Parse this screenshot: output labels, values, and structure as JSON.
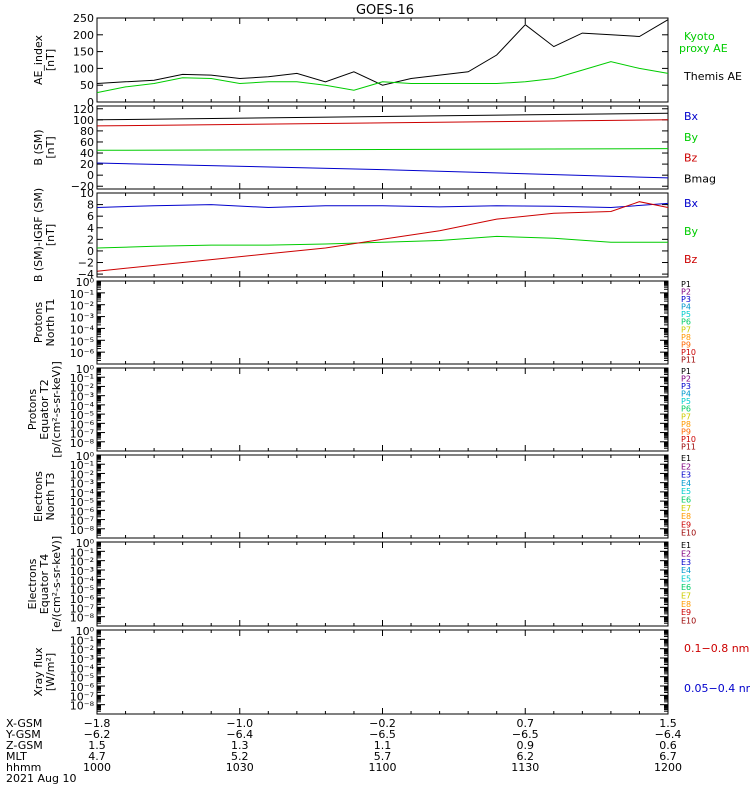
{
  "title": "GOES-16",
  "panels": [
    {
      "id": "ae",
      "ylabel_lines": [
        "AE_index",
        "[nT]"
      ],
      "ylim": [
        0,
        250
      ],
      "yticks": [
        {
          "v": 250,
          "label": "250"
        },
        {
          "v": 200,
          "label": "200"
        },
        {
          "v": 150,
          "label": "150"
        },
        {
          "v": 100,
          "label": "100"
        },
        {
          "v": 50,
          "label": "50"
        },
        {
          "v": 0,
          "label": "0"
        }
      ],
      "legend": [
        {
          "text": "Kyoto",
          "color": "#00cc00"
        },
        {
          "text": "proxy AE",
          "color": "#00cc00"
        },
        {
          "text": "Themis AE",
          "color": "#000000"
        }
      ],
      "series": [
        {
          "color": "#000000",
          "x": [
            0,
            0.05,
            0.1,
            0.15,
            0.2,
            0.25,
            0.3,
            0.35,
            0.4,
            0.45,
            0.5,
            0.55,
            0.6,
            0.65,
            0.7,
            0.75,
            0.8,
            0.85,
            0.9,
            0.95,
            1
          ],
          "y": [
            55,
            60,
            65,
            82,
            80,
            70,
            75,
            85,
            60,
            90,
            50,
            70,
            80,
            90,
            140,
            230,
            165,
            205,
            200,
            195,
            245
          ]
        },
        {
          "color": "#00cc00",
          "x": [
            0,
            0.05,
            0.1,
            0.15,
            0.2,
            0.25,
            0.3,
            0.35,
            0.4,
            0.45,
            0.5,
            0.55,
            0.6,
            0.65,
            0.7,
            0.75,
            0.8,
            0.85,
            0.9,
            0.95,
            1
          ],
          "y": [
            28,
            45,
            55,
            72,
            70,
            55,
            60,
            60,
            50,
            35,
            60,
            55,
            55,
            55,
            55,
            60,
            70,
            95,
            120,
            100,
            85
          ]
        }
      ]
    },
    {
      "id": "b_sm",
      "ylabel_lines": [
        "B (SM)",
        "[nT]"
      ],
      "ylim": [
        -25,
        125
      ],
      "yticks": [
        {
          "v": 120,
          "label": "120"
        },
        {
          "v": 100,
          "label": "100"
        },
        {
          "v": 80,
          "label": "80"
        },
        {
          "v": 60,
          "label": "60"
        },
        {
          "v": 40,
          "label": "40"
        },
        {
          "v": 20,
          "label": "20"
        },
        {
          "v": 0,
          "label": "0"
        },
        {
          "v": -20,
          "label": "−20"
        }
      ],
      "legend": [
        {
          "text": "Bx",
          "color": "#0000cc"
        },
        {
          "text": "By",
          "color": "#00cc00"
        },
        {
          "text": "Bz",
          "color": "#cc0000"
        },
        {
          "text": "Bmag",
          "color": "#000000"
        }
      ],
      "series": [
        {
          "color": "#000000",
          "x": [
            0,
            1
          ],
          "y": [
            100,
            112
          ]
        },
        {
          "color": "#cc0000",
          "x": [
            0,
            1
          ],
          "y": [
            89,
            100
          ]
        },
        {
          "color": "#00cc00",
          "x": [
            0,
            1
          ],
          "y": [
            45,
            48
          ]
        },
        {
          "color": "#0000cc",
          "x": [
            0,
            0.5,
            1
          ],
          "y": [
            22,
            10,
            -5
          ]
        }
      ]
    },
    {
      "id": "b_igrf",
      "ylabel_lines": [
        "B (SM)-IGRF (SM)",
        "[nT]"
      ],
      "ylim": [
        -4.5,
        10
      ],
      "yticks": [
        {
          "v": 10,
          "label": "10"
        },
        {
          "v": 8,
          "label": "8"
        },
        {
          "v": 6,
          "label": "6"
        },
        {
          "v": 4,
          "label": "4"
        },
        {
          "v": 2,
          "label": "2"
        },
        {
          "v": 0,
          "label": "0"
        },
        {
          "v": -2,
          "label": "−2"
        },
        {
          "v": -4,
          "label": "−4"
        }
      ],
      "legend": [
        {
          "text": "Bx",
          "color": "#0000cc"
        },
        {
          "text": "By",
          "color": "#00cc00"
        },
        {
          "text": "Bz",
          "color": "#cc0000"
        }
      ],
      "series": [
        {
          "color": "#0000cc",
          "x": [
            0,
            0.1,
            0.2,
            0.3,
            0.4,
            0.5,
            0.6,
            0.7,
            0.8,
            0.9,
            1
          ],
          "y": [
            7.5,
            7.8,
            8,
            7.5,
            7.8,
            7.8,
            7.6,
            7.8,
            7.7,
            7.5,
            8.2
          ]
        },
        {
          "color": "#00cc00",
          "x": [
            0,
            0.1,
            0.2,
            0.3,
            0.4,
            0.5,
            0.6,
            0.7,
            0.8,
            0.9,
            1
          ],
          "y": [
            0.5,
            0.8,
            1,
            1,
            1.2,
            1.5,
            1.8,
            2.5,
            2.2,
            1.5,
            1.5
          ]
        },
        {
          "color": "#cc0000",
          "x": [
            0,
            0.1,
            0.2,
            0.3,
            0.4,
            0.5,
            0.6,
            0.7,
            0.8,
            0.9,
            0.95,
            1
          ],
          "y": [
            -3.5,
            -2.5,
            -1.5,
            -0.5,
            0.5,
            2,
            3.5,
            5.5,
            6.5,
            6.8,
            8.5,
            7.5
          ]
        }
      ]
    },
    {
      "id": "protons_t1",
      "ylabel_lines": [
        "Protons",
        "North T1"
      ],
      "log_ticks": [
        {
          "label": "10⁰"
        },
        {
          "label": "10⁻¹"
        },
        {
          "label": "10⁻²"
        },
        {
          "label": "10⁻³"
        },
        {
          "label": "10⁻⁴"
        },
        {
          "label": "10⁻⁵"
        },
        {
          "label": "10⁻⁶"
        }
      ],
      "legend": [
        {
          "text": "P1",
          "color": "#000000"
        },
        {
          "text": "P2",
          "color": "#800080"
        },
        {
          "text": "P3",
          "color": "#0000cc"
        },
        {
          "text": "P4",
          "color": "#0099cc"
        },
        {
          "text": "P5",
          "color": "#00cccc"
        },
        {
          "text": "P6",
          "color": "#00cc66"
        },
        {
          "text": "P7",
          "color": "#cccc00"
        },
        {
          "text": "P8",
          "color": "#ff9900"
        },
        {
          "text": "P9",
          "color": "#ff6600"
        },
        {
          "text": "P10",
          "color": "#cc0000"
        },
        {
          "text": "P11",
          "color": "#990000"
        }
      ]
    },
    {
      "id": "protons_t2",
      "ylabel_lines": [
        "Protons",
        "Equator T2",
        "[p/(cm²-s-sr-keV)]"
      ],
      "log_ticks": [
        {
          "label": "10⁰"
        },
        {
          "label": "10⁻¹"
        },
        {
          "label": "10⁻²"
        },
        {
          "label": "10⁻³"
        },
        {
          "label": "10⁻⁴"
        },
        {
          "label": "10⁻⁵"
        },
        {
          "label": "10⁻⁶"
        },
        {
          "label": "10⁻⁷"
        },
        {
          "label": "10⁻⁸"
        }
      ],
      "legend": [
        {
          "text": "P1",
          "color": "#000000"
        },
        {
          "text": "P2",
          "color": "#800080"
        },
        {
          "text": "P3",
          "color": "#0000cc"
        },
        {
          "text": "P4",
          "color": "#0099cc"
        },
        {
          "text": "P5",
          "color": "#00cccc"
        },
        {
          "text": "P6",
          "color": "#00cc66"
        },
        {
          "text": "P7",
          "color": "#cccc00"
        },
        {
          "text": "P8",
          "color": "#ff9900"
        },
        {
          "text": "P9",
          "color": "#ff6600"
        },
        {
          "text": "P10",
          "color": "#cc0000"
        },
        {
          "text": "P11",
          "color": "#990000"
        }
      ]
    },
    {
      "id": "electrons_t3",
      "ylabel_lines": [
        "Electrons",
        "North T3"
      ],
      "log_ticks": [
        {
          "label": "10⁰"
        },
        {
          "label": "10⁻¹"
        },
        {
          "label": "10⁻²"
        },
        {
          "label": "10⁻³"
        },
        {
          "label": "10⁻⁴"
        },
        {
          "label": "10⁻⁵"
        },
        {
          "label": "10⁻⁶"
        },
        {
          "label": "10⁻⁷"
        },
        {
          "label": "10⁻⁸"
        }
      ],
      "legend": [
        {
          "text": "E1",
          "color": "#000000"
        },
        {
          "text": "E2",
          "color": "#800080"
        },
        {
          "text": "E3",
          "color": "#0000cc"
        },
        {
          "text": "E4",
          "color": "#0099cc"
        },
        {
          "text": "E5",
          "color": "#00cccc"
        },
        {
          "text": "E6",
          "color": "#00cc66"
        },
        {
          "text": "E7",
          "color": "#cccc00"
        },
        {
          "text": "E8",
          "color": "#ff9900"
        },
        {
          "text": "E9",
          "color": "#cc0000"
        },
        {
          "text": "E10",
          "color": "#990000"
        }
      ]
    },
    {
      "id": "electrons_t4",
      "ylabel_lines": [
        "Electrons",
        "Equator T4",
        "[e/(cm²-s-sr-keV)]"
      ],
      "log_ticks": [
        {
          "label": "10⁰"
        },
        {
          "label": "10⁻¹"
        },
        {
          "label": "10⁻²"
        },
        {
          "label": "10⁻³"
        },
        {
          "label": "10⁻⁴"
        },
        {
          "label": "10⁻⁵"
        },
        {
          "label": "10⁻⁶"
        },
        {
          "label": "10⁻⁷"
        },
        {
          "label": "10⁻⁸"
        }
      ],
      "legend": [
        {
          "text": "E1",
          "color": "#000000"
        },
        {
          "text": "E2",
          "color": "#800080"
        },
        {
          "text": "E3",
          "color": "#0000cc"
        },
        {
          "text": "E4",
          "color": "#0099cc"
        },
        {
          "text": "E5",
          "color": "#00cccc"
        },
        {
          "text": "E6",
          "color": "#00cc66"
        },
        {
          "text": "E7",
          "color": "#cccc00"
        },
        {
          "text": "E8",
          "color": "#ff9900"
        },
        {
          "text": "E9",
          "color": "#cc0000"
        },
        {
          "text": "E10",
          "color": "#990000"
        }
      ]
    },
    {
      "id": "xray",
      "ylabel_lines": [
        "Xray flux",
        "[W/m²]"
      ],
      "log_ticks": [
        {
          "label": "10⁰"
        },
        {
          "label": "10⁻¹"
        },
        {
          "label": "10⁻²"
        },
        {
          "label": "10⁻³"
        },
        {
          "label": "10⁻⁴"
        },
        {
          "label": "10⁻⁵"
        },
        {
          "label": "10⁻⁶"
        },
        {
          "label": "10⁻⁷"
        },
        {
          "label": "10⁻⁸"
        }
      ],
      "legend": [
        {
          "text": "0.1−0.8 nm",
          "color": "#cc0000"
        },
        {
          "text": "0.05−0.4 nm",
          "color": "#0000cc"
        }
      ]
    }
  ],
  "footer": {
    "rows": [
      {
        "label": "X-GSM",
        "values": [
          "−1.8",
          "−1.0",
          "−0.2",
          "0.7",
          "1.5"
        ]
      },
      {
        "label": "Y-GSM",
        "values": [
          "−6.2",
          "−6.4",
          "−6.5",
          "−6.5",
          "−6.4"
        ]
      },
      {
        "label": "Z-GSM",
        "values": [
          "1.5",
          "1.3",
          "1.1",
          "0.9",
          "0.6"
        ]
      },
      {
        "label": "MLT",
        "values": [
          "4.7",
          "5.2",
          "5.7",
          "6.2",
          "6.7"
        ]
      },
      {
        "label": "hhmm",
        "values": [
          "1000",
          "1030",
          "1100",
          "1130",
          "1200"
        ]
      }
    ],
    "date": "2021 Aug 10"
  },
  "chart_data": {
    "type": "line",
    "title": "GOES-16",
    "x_label_rows": [
      "X-GSM",
      "Y-GSM",
      "Z-GSM",
      "MLT",
      "hhmm"
    ],
    "x_ticks_hhmm": [
      "1000",
      "1030",
      "1100",
      "1130",
      "1200"
    ],
    "date": "2021 Aug 10",
    "panels": [
      {
        "ylabel": "AE_index [nT]",
        "ylim": [
          0,
          250
        ],
        "series": [
          {
            "name": "Themis AE",
            "note_color": "#000000"
          },
          {
            "name": "Kyoto proxy AE",
            "note_color": "#00cc00"
          }
        ]
      },
      {
        "ylabel": "B (SM) [nT]",
        "ylim": [
          -20,
          120
        ],
        "series": [
          {
            "name": "Bx"
          },
          {
            "name": "By"
          },
          {
            "name": "Bz"
          },
          {
            "name": "Bmag"
          }
        ]
      },
      {
        "ylabel": "B (SM)-IGRF (SM) [nT]",
        "ylim": [
          -4,
          10
        ],
        "series": [
          {
            "name": "Bx"
          },
          {
            "name": "By"
          },
          {
            "name": "Bz"
          }
        ]
      },
      {
        "ylabel": "Protons North T1",
        "scale": "log"
      },
      {
        "ylabel": "Protons Equator T2 [p/(cm²-s-sr-keV)]",
        "scale": "log"
      },
      {
        "ylabel": "Electrons North T3",
        "scale": "log"
      },
      {
        "ylabel": "Electrons Equator T4 [e/(cm²-s-sr-keV)]",
        "scale": "log"
      },
      {
        "ylabel": "Xray flux [W/m²]",
        "scale": "log"
      }
    ]
  }
}
